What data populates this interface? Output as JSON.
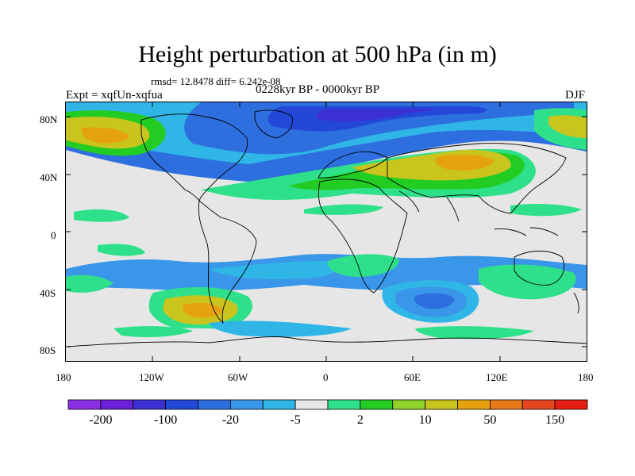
{
  "title": "Height perturbation at 500 hPa (in m)",
  "stats": "rmsd= 12.8478 diff= 6.242e-08",
  "experiment": "Expt = xqfUn-xqfua",
  "period": "0228kyr BP - 0000kyr BP",
  "season": "DJF",
  "map": {
    "projection": "cylindrical equidistant",
    "lon_range": [
      -180,
      180
    ],
    "lat_range": [
      -90,
      90
    ],
    "y_ticks": [
      "80N",
      "40N",
      "0",
      "40S",
      "80S"
    ],
    "x_ticks": [
      "180",
      "120W",
      "60W",
      "0",
      "60E",
      "120E",
      "180"
    ]
  },
  "colorbar": {
    "colors": [
      "#8c2ee6",
      "#6a1fd8",
      "#3c2fd4",
      "#2348d8",
      "#2e6fe0",
      "#3a96e8",
      "#2fb6e6",
      "#e6e6e6",
      "#2fe08a",
      "#22cc22",
      "#8fd22a",
      "#c9c41e",
      "#e6a20e",
      "#e6781a",
      "#e6461e",
      "#e61e16"
    ],
    "labels": [
      "-200",
      "-100",
      "-20",
      "-5",
      "2",
      "10",
      "50",
      "150"
    ]
  },
  "colors": {
    "neutral": "#e6e6e6",
    "coast": "#000000"
  }
}
